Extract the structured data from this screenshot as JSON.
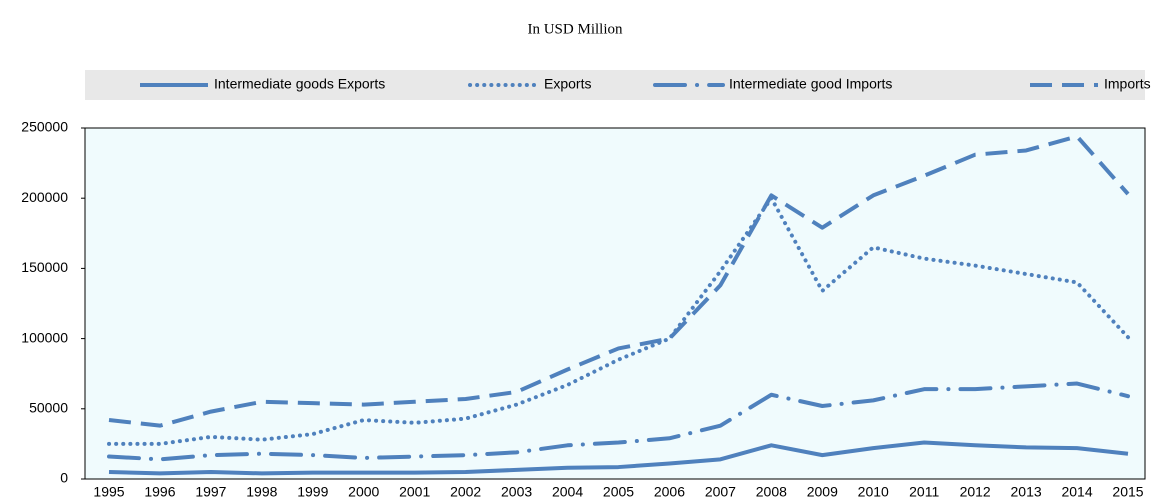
{
  "chart_data": {
    "type": "line",
    "title": "In USD Million",
    "categories": [
      "1995",
      "1996",
      "1997",
      "1998",
      "1999",
      "2000",
      "2001",
      "2002",
      "2003",
      "2004",
      "2005",
      "2006",
      "2007",
      "2008",
      "2009",
      "2010",
      "2011",
      "2012",
      "2013",
      "2014",
      "2015"
    ],
    "series": [
      {
        "name": "Intermediate goods Exports",
        "color": "#4f81bd",
        "dash": "solid",
        "values": [
          5000,
          4000,
          5000,
          4000,
          4500,
          4500,
          4500,
          5000,
          6500,
          8000,
          8500,
          11000,
          14000,
          24000,
          17000,
          22000,
          26000,
          24000,
          22500,
          22000,
          18000
        ]
      },
      {
        "name": "Exports",
        "color": "#4f81bd",
        "dash": "dotted",
        "values": [
          25000,
          25000,
          30000,
          28000,
          32000,
          42000,
          40000,
          43000,
          53000,
          67000,
          85000,
          100000,
          148000,
          200000,
          134000,
          165000,
          157000,
          152000,
          146000,
          140000,
          101000
        ]
      },
      {
        "name": "Intermediate good Imports",
        "color": "#4f81bd",
        "dash": "dashdot",
        "values": [
          16000,
          14000,
          17000,
          18000,
          17000,
          15000,
          16000,
          17000,
          19000,
          24000,
          26000,
          29000,
          38000,
          60000,
          52000,
          56000,
          64000,
          64000,
          66000,
          68000,
          59000
        ]
      },
      {
        "name": "Imports",
        "color": "#4f81bd",
        "dash": "dashed",
        "values": [
          42000,
          38000,
          48000,
          55000,
          54000,
          53000,
          55000,
          57000,
          62000,
          78000,
          93000,
          100000,
          138000,
          202000,
          179000,
          202000,
          216000,
          231000,
          234000,
          244000,
          203000
        ]
      }
    ],
    "ylim": [
      0,
      250000
    ],
    "yticks": [
      0,
      50000,
      100000,
      150000,
      200000,
      250000
    ],
    "grid": false,
    "legend": "top",
    "background": "#f0fbfd"
  }
}
